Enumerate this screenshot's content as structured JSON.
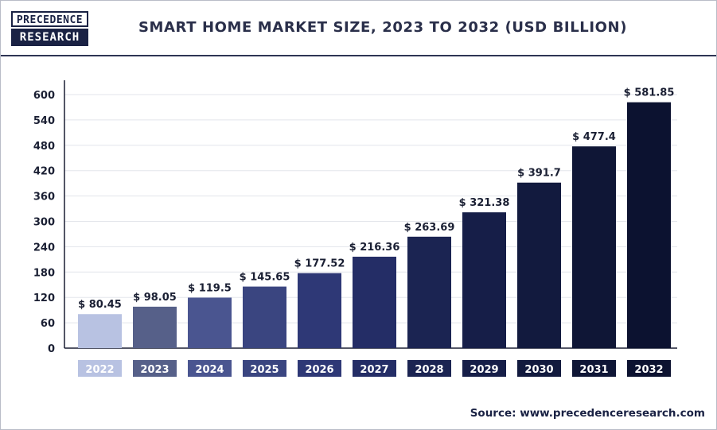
{
  "header": {
    "logo_top": "PRECEDENCE",
    "logo_bottom": "RESEARCH"
  },
  "chart_data": {
    "type": "bar",
    "title": "SMART HOME MARKET SIZE, 2023 TO 2032 (USD BILLION)",
    "categories": [
      "2022",
      "2023",
      "2024",
      "2025",
      "2026",
      "2027",
      "2028",
      "2029",
      "2030",
      "2031",
      "2032"
    ],
    "values": [
      80.45,
      98.05,
      119.5,
      145.65,
      177.52,
      216.36,
      263.69,
      321.38,
      391.7,
      477.4,
      581.85
    ],
    "value_labels": [
      "$ 80.45",
      "$ 98.05",
      "$ 119.5",
      "$ 145.65",
      "$ 177.52",
      "$ 216.36",
      "$ 263.69",
      "$ 321.38",
      "$ 391.7",
      "$ 477.4",
      "$ 581.85"
    ],
    "bar_colors": [
      "#b8c2e2",
      "#566089",
      "#4a5590",
      "#3a4580",
      "#2e3876",
      "#242d66",
      "#1b2452",
      "#161e48",
      "#121a3e",
      "#0f1636",
      "#0c1230"
    ],
    "y_ticks": [
      0,
      60,
      120,
      180,
      240,
      300,
      360,
      420,
      480,
      540,
      600
    ],
    "ylim": [
      0,
      600
    ],
    "grid": true,
    "xlabel": "",
    "ylabel": ""
  },
  "source": "Source: www.precedenceresearch.com"
}
